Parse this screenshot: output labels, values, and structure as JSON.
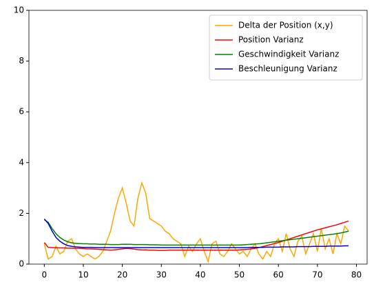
{
  "chart_data": {
    "type": "line",
    "x": [
      0,
      1,
      2,
      3,
      4,
      5,
      6,
      7,
      8,
      9,
      10,
      11,
      12,
      13,
      14,
      15,
      16,
      17,
      18,
      19,
      20,
      21,
      22,
      23,
      24,
      25,
      26,
      27,
      28,
      29,
      30,
      31,
      32,
      33,
      34,
      35,
      36,
      37,
      38,
      39,
      40,
      41,
      42,
      43,
      44,
      45,
      46,
      47,
      48,
      49,
      50,
      51,
      52,
      53,
      54,
      55,
      56,
      57,
      58,
      59,
      60,
      61,
      62,
      63,
      64,
      65,
      66,
      67,
      68,
      69,
      70,
      71,
      72,
      73,
      74,
      75,
      76,
      77,
      78
    ],
    "series": [
      {
        "name": "Delta der Position (x,y)",
        "color": "#ffa500",
        "values": [
          0.8,
          0.2,
          0.3,
          0.7,
          0.4,
          0.5,
          0.9,
          1.0,
          0.6,
          0.4,
          0.3,
          0.4,
          0.3,
          0.2,
          0.3,
          0.5,
          0.9,
          1.3,
          2.0,
          2.6,
          3.0,
          2.4,
          1.7,
          1.5,
          2.6,
          3.2,
          2.8,
          1.8,
          1.7,
          1.6,
          1.5,
          1.3,
          1.2,
          1.0,
          0.9,
          0.8,
          0.3,
          0.7,
          0.5,
          0.8,
          1.0,
          0.5,
          0.1,
          0.8,
          0.9,
          0.4,
          0.3,
          0.5,
          0.8,
          0.6,
          0.4,
          0.5,
          0.3,
          0.6,
          0.8,
          0.4,
          0.2,
          0.5,
          0.3,
          0.8,
          1.0,
          0.5,
          1.2,
          0.6,
          0.3,
          0.9,
          1.1,
          0.4,
          0.8,
          1.2,
          0.5,
          1.4,
          0.6,
          1.0,
          0.4,
          1.2,
          0.8,
          1.5,
          1.3
        ]
      },
      {
        "name": "Position Varianz",
        "color": "#ff0000",
        "values": [
          0.85,
          0.66,
          0.65,
          0.65,
          0.64,
          0.64,
          0.63,
          0.63,
          0.62,
          0.62,
          0.61,
          0.6,
          0.6,
          0.59,
          0.58,
          0.57,
          0.56,
          0.55,
          0.56,
          0.58,
          0.6,
          0.62,
          0.61,
          0.59,
          0.57,
          0.56,
          0.56,
          0.55,
          0.55,
          0.54,
          0.54,
          0.54,
          0.55,
          0.55,
          0.55,
          0.55,
          0.55,
          0.55,
          0.55,
          0.55,
          0.55,
          0.55,
          0.55,
          0.55,
          0.55,
          0.55,
          0.55,
          0.55,
          0.55,
          0.55,
          0.56,
          0.57,
          0.58,
          0.6,
          0.62,
          0.65,
          0.69,
          0.73,
          0.77,
          0.81,
          0.85,
          0.9,
          0.95,
          1.0,
          1.05,
          1.1,
          1.15,
          1.2,
          1.25,
          1.3,
          1.35,
          1.39,
          1.43,
          1.47,
          1.51,
          1.55,
          1.6,
          1.65,
          1.7
        ]
      },
      {
        "name": "Geschwindigkeit Varianz",
        "color": "#008000",
        "values": [
          1.75,
          1.65,
          1.4,
          1.2,
          1.05,
          0.95,
          0.88,
          0.84,
          0.82,
          0.81,
          0.8,
          0.8,
          0.79,
          0.79,
          0.78,
          0.78,
          0.78,
          0.77,
          0.77,
          0.77,
          0.78,
          0.78,
          0.78,
          0.77,
          0.77,
          0.77,
          0.77,
          0.76,
          0.76,
          0.76,
          0.75,
          0.75,
          0.75,
          0.75,
          0.75,
          0.75,
          0.75,
          0.75,
          0.75,
          0.75,
          0.75,
          0.75,
          0.75,
          0.75,
          0.75,
          0.75,
          0.75,
          0.75,
          0.75,
          0.75,
          0.75,
          0.76,
          0.77,
          0.78,
          0.79,
          0.8,
          0.82,
          0.84,
          0.86,
          0.88,
          0.9,
          0.92,
          0.94,
          0.96,
          0.98,
          1.0,
          1.02,
          1.04,
          1.06,
          1.08,
          1.1,
          1.12,
          1.14,
          1.16,
          1.18,
          1.2,
          1.23,
          1.26,
          1.3
        ]
      },
      {
        "name": "Beschleunigung Varianz",
        "color": "#0000cd",
        "values": [
          1.78,
          1.6,
          1.3,
          1.05,
          0.9,
          0.8,
          0.73,
          0.7,
          0.68,
          0.67,
          0.66,
          0.66,
          0.66,
          0.65,
          0.65,
          0.65,
          0.65,
          0.65,
          0.65,
          0.65,
          0.65,
          0.65,
          0.65,
          0.65,
          0.65,
          0.65,
          0.65,
          0.65,
          0.65,
          0.65,
          0.65,
          0.65,
          0.65,
          0.65,
          0.65,
          0.65,
          0.65,
          0.65,
          0.65,
          0.65,
          0.65,
          0.65,
          0.65,
          0.65,
          0.65,
          0.65,
          0.65,
          0.65,
          0.65,
          0.65,
          0.65,
          0.65,
          0.65,
          0.66,
          0.66,
          0.66,
          0.66,
          0.67,
          0.67,
          0.67,
          0.67,
          0.68,
          0.68,
          0.68,
          0.68,
          0.69,
          0.69,
          0.69,
          0.69,
          0.7,
          0.7,
          0.7,
          0.7,
          0.71,
          0.71,
          0.71,
          0.71,
          0.72,
          0.72
        ]
      }
    ],
    "xlim": [
      -3.94,
      82.74
    ],
    "ylim": [
      0,
      10
    ],
    "xticks": [
      0,
      10,
      20,
      30,
      40,
      50,
      60,
      70,
      80
    ],
    "yticks": [
      0,
      2,
      4,
      6,
      8,
      10
    ],
    "grid": false,
    "legend": "upper right"
  }
}
